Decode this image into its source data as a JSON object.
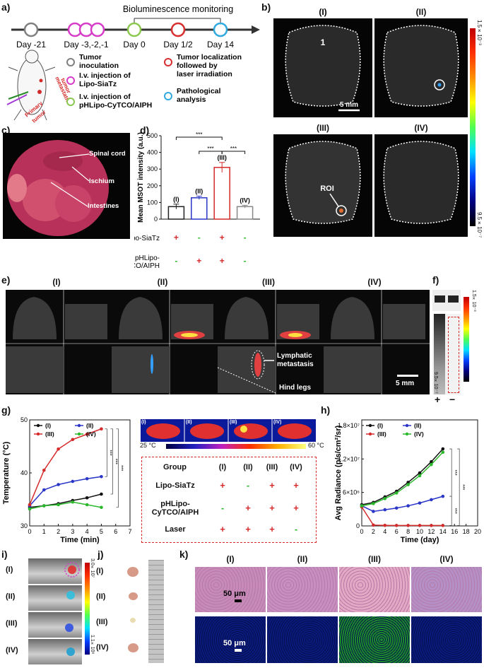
{
  "panels": {
    "a": "a)",
    "b": "b)",
    "c": "c)",
    "d": "d)",
    "e": "e)",
    "f": "f)",
    "g": "g)",
    "h": "h)",
    "i": "i)",
    "j": "j)",
    "k": "k)"
  },
  "groups": [
    "(I)",
    "(II)",
    "(III)",
    "(IV)"
  ],
  "timeline": {
    "monitor_label": "Bioluminescence monitoring",
    "days": [
      "Day -21",
      "Day -3,-2,-1",
      "Day 0",
      "Day 1/2",
      "Day 14"
    ],
    "legend": [
      {
        "text": "Tumor\ninoculation",
        "color": "#808080"
      },
      {
        "text": "I.v. injection  of\nLipo-SiaTz",
        "color": "#d63cc8"
      },
      {
        "text": "I.v. injection of\npHLipo-CyTCO/AIPH",
        "color": "#8cc850"
      },
      {
        "text": "Tumor localization\nfollowed by\nlaser irradiation",
        "color": "#d83030"
      },
      {
        "text": "Pathological\nanalysis",
        "color": "#30a8e0"
      }
    ],
    "mouse_labels": {
      "metastatic": "metastatic\ntumor",
      "primary": "Primary\ntumor"
    }
  },
  "msot_b": {
    "label_1": "1",
    "scale_label": "5 mm",
    "roi_label": "ROI",
    "colorbar_max": "1.5×10⁻³",
    "colorbar_min": "9.5×10⁻⁷"
  },
  "photo_c": {
    "labels": [
      "Spinal cord",
      "Ischium",
      "Intestines"
    ]
  },
  "chart_data": [
    {
      "id": "d",
      "type": "bar",
      "ylabel": "Mean MSOT intensity (a.u.)",
      "categories": [
        "(I)",
        "(II)",
        "(III)",
        "(IV)"
      ],
      "values": [
        75,
        128,
        310,
        75
      ],
      "errors": [
        15,
        10,
        30,
        8
      ],
      "colors": [
        "#222222",
        "#2a36c8",
        "#d42a2a",
        "#888888"
      ],
      "ylim": [
        0,
        500
      ],
      "yticks": [
        0,
        100,
        200,
        300,
        400,
        500
      ],
      "significance": [
        "***",
        "***",
        "***"
      ],
      "conditions": [
        {
          "label": "Lipo-SiaTz",
          "values": [
            "+",
            "-",
            "+",
            "-"
          ]
        },
        {
          "label": "pHLipo-\nCyTCO/AIPH",
          "values": [
            "-",
            "+",
            "+",
            "-"
          ]
        }
      ]
    },
    {
      "id": "g",
      "type": "line",
      "xlabel": "Time (min)",
      "ylabel": "Temperature (°C)",
      "x": [
        0,
        1,
        2,
        3,
        4,
        5
      ],
      "xticks": [
        0,
        1,
        2,
        3,
        4,
        5,
        6,
        7
      ],
      "xlim": [
        0,
        7
      ],
      "ylim": [
        30,
        50
      ],
      "yticks": [
        30,
        40,
        50
      ],
      "series": [
        {
          "name": "(I)",
          "color": "#111111",
          "values": [
            33.5,
            33.8,
            34.2,
            34.8,
            35.3,
            36.0
          ]
        },
        {
          "name": "(II)",
          "color": "#2a36c8",
          "values": [
            33.8,
            36.8,
            37.8,
            38.4,
            38.9,
            39.3
          ]
        },
        {
          "name": "(III)",
          "color": "#d42a2a",
          "values": [
            34.0,
            40.5,
            44.5,
            46.3,
            47.3,
            48.3
          ]
        },
        {
          "name": "(IV)",
          "color": "#2cb82c",
          "values": [
            33.2,
            33.8,
            34.0,
            34.5,
            34.0,
            33.5
          ]
        }
      ],
      "significance": [
        "***",
        "***",
        "***"
      ]
    },
    {
      "id": "h",
      "type": "line",
      "xlabel": "Time (day)",
      "ylabel": "Avg Radiance (p/s/cm²/sr)",
      "x": [
        0,
        2,
        4,
        6,
        8,
        10,
        12,
        14
      ],
      "xticks": [
        0,
        2,
        4,
        6,
        8,
        10,
        12,
        14,
        16,
        18,
        20
      ],
      "xlim": [
        0,
        20
      ],
      "ylim": [
        0,
        19000000
      ],
      "ytick_values": [
        0,
        6000000,
        12000000,
        18000000
      ],
      "ytick_labels": [
        "0",
        "6×10⁶",
        "1.2×10⁷",
        "1.8×10⁷"
      ],
      "series": [
        {
          "name": "(I)",
          "color": "#111111",
          "values": [
            3800000,
            4200000,
            5200000,
            6200000,
            7800000,
            9500000,
            11500000,
            13800000
          ]
        },
        {
          "name": "(II)",
          "color": "#2a36c8",
          "values": [
            3600000,
            2600000,
            2900000,
            3200000,
            3600000,
            4100000,
            4700000,
            5300000
          ]
        },
        {
          "name": "(III)",
          "color": "#d42a2a",
          "values": [
            3400000,
            150000,
            100000,
            80000,
            80000,
            80000,
            80000,
            80000
          ]
        },
        {
          "name": "(IV)",
          "color": "#2cb82c",
          "values": [
            3600000,
            4000000,
            4900000,
            5900000,
            7400000,
            9000000,
            11000000,
            13200000
          ]
        }
      ],
      "significance": [
        "***",
        "***",
        "***"
      ]
    }
  ],
  "msot_e": {
    "lymph_label": "Lymphatic\nmetastasis",
    "hind_label": "Hind legs",
    "scale_label": "5 mm",
    "colorbar_max": "1.5×10⁻³",
    "colorbar_min": "9.5×10⁻⁷"
  },
  "blot_f": {
    "lanes": [
      "+",
      "−"
    ]
  },
  "thermal": {
    "scale_min": "25 °C",
    "scale_max": "60 °C",
    "table_header": [
      "Group",
      "(I)",
      "(II)",
      "(III)",
      "(IV)"
    ],
    "rows": [
      {
        "label": "Lipo-SiaTz",
        "values": [
          "+",
          "-",
          "+",
          "+"
        ]
      },
      {
        "label": "pHLipo-\nCyTCO/AIPH",
        "values": [
          "-",
          "+",
          "+",
          "+"
        ]
      },
      {
        "label": "Laser",
        "values": [
          "+",
          "+",
          "+",
          "-"
        ]
      }
    ]
  },
  "panel_i": {
    "colorbar_max": "3.0×10⁷",
    "colorbar_min": "1.1×10⁶"
  },
  "panel_k": {
    "scale_label": "50 μm"
  },
  "colors": {
    "accent_red": "#d42a2a",
    "accent_blue": "#2a36c8",
    "accent_green": "#2cb82c"
  }
}
